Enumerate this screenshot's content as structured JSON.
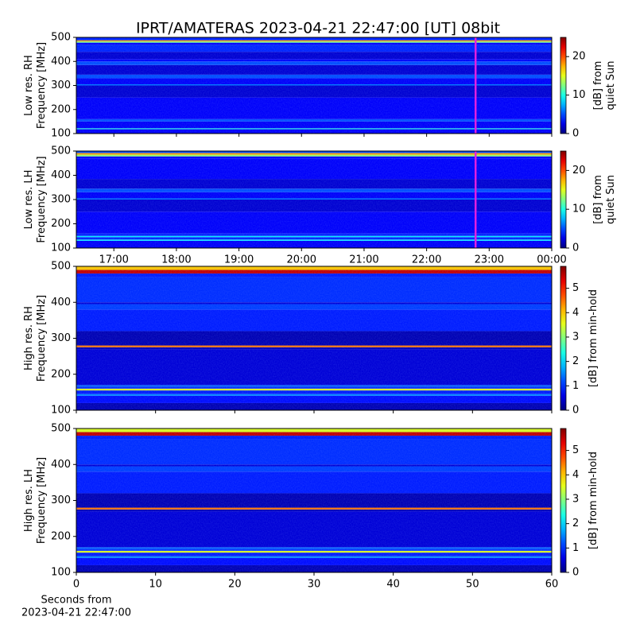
{
  "chart_data": [
    {
      "type": "heatmap",
      "title": "IPRT/AMATERAS 2023-04-21 22:47:00 [UT]   08bit",
      "ylabel": [
        "Low res. RH",
        "Frequency [MHz]"
      ],
      "xlim": [
        16.4,
        24.0
      ],
      "xticks": [
        17,
        18,
        19,
        20,
        21,
        22,
        23,
        24
      ],
      "show_xticklabels": false,
      "ylim": [
        100,
        500
      ],
      "yticks": [
        100,
        200,
        300,
        400,
        500
      ],
      "y_edges": [
        100,
        118,
        122,
        150,
        160,
        250,
        300,
        305,
        330,
        345,
        385,
        400,
        410,
        440,
        470,
        478,
        483,
        488,
        500
      ],
      "values": [
        3,
        10,
        3,
        5,
        3,
        2,
        6,
        3,
        5,
        2,
        5,
        3,
        2,
        4,
        3,
        12,
        18,
        4
      ],
      "marker": {
        "x": 22.783,
        "color": "#e020e0"
      },
      "colormap": "jet",
      "clim": [
        0,
        25
      ],
      "cticks": [
        0,
        10,
        20
      ],
      "clabel": [
        "[dB] from",
        "quiet Sun"
      ]
    },
    {
      "type": "heatmap",
      "ylabel": [
        "Low res. LH",
        "Frequency [MHz]"
      ],
      "xlim": [
        16.4,
        24.0
      ],
      "xticks": [
        {
          "value": 17,
          "label": "17:00"
        },
        {
          "value": 18,
          "label": "18:00"
        },
        {
          "value": 19,
          "label": "19:00"
        },
        {
          "value": 20,
          "label": "20:00"
        },
        {
          "value": 21,
          "label": "21:00"
        },
        {
          "value": 22,
          "label": "22:00"
        },
        {
          "value": 23,
          "label": "23:00"
        },
        {
          "value": 24,
          "label": "00:00"
        }
      ],
      "show_xticklabels": true,
      "xticks_top": true,
      "ylim": [
        100,
        500
      ],
      "yticks": [
        100,
        200,
        300,
        400,
        500
      ],
      "y_edges": [
        100,
        130,
        135,
        145,
        150,
        160,
        250,
        300,
        305,
        330,
        345,
        385,
        470,
        478,
        485,
        492,
        500
      ],
      "values": [
        3,
        9,
        4,
        9,
        4,
        3,
        2,
        6,
        3,
        5,
        2,
        3,
        3,
        13,
        18,
        5
      ],
      "marker": {
        "x": 22.783,
        "color": "#e020e0"
      },
      "colormap": "jet",
      "clim": [
        0,
        25
      ],
      "cticks": [
        0,
        10,
        20
      ],
      "clabel": [
        "[dB] from",
        "quiet Sun"
      ]
    },
    {
      "type": "heatmap",
      "ylabel": [
        "High res. RH",
        "Frequency [MHz]"
      ],
      "xlim": [
        0,
        60
      ],
      "xticks": [
        0,
        10,
        20,
        30,
        40,
        50,
        60
      ],
      "show_xticklabels": false,
      "ylim": [
        100,
        500
      ],
      "yticks": [
        100,
        200,
        300,
        400,
        500
      ],
      "y_edges": [
        100,
        120,
        140,
        145,
        155,
        160,
        165,
        170,
        270,
        275,
        280,
        320,
        380,
        395,
        400,
        470,
        480,
        490,
        500
      ],
      "values": [
        0.3,
        0.8,
        1.5,
        0.9,
        3.5,
        1.0,
        1.3,
        0.5,
        0.3,
        4.5,
        0.3,
        0.9,
        1.1,
        0.5,
        1.0,
        0.9,
        5.5,
        4.0
      ],
      "colormap": "jet",
      "clim": [
        0,
        5.9
      ],
      "cticks": [
        0,
        1,
        2,
        3,
        4,
        5
      ],
      "clabel": [
        "[dB] from min-hold"
      ]
    },
    {
      "type": "heatmap",
      "ylabel": [
        "High res. LH",
        "Frequency [MHz]"
      ],
      "xlim": [
        0,
        60
      ],
      "xticks": [
        0,
        10,
        20,
        30,
        40,
        50,
        60
      ],
      "show_xticklabels": true,
      "xlabel": [
        "Seconds from",
        "2023-04-21 22:47:00"
      ],
      "ylim": [
        100,
        500
      ],
      "yticks": [
        100,
        200,
        300,
        400,
        500
      ],
      "y_edges": [
        100,
        120,
        140,
        145,
        155,
        160,
        165,
        170,
        270,
        275,
        280,
        320,
        380,
        395,
        400,
        470,
        480,
        490,
        500
      ],
      "values": [
        0.3,
        0.8,
        1.5,
        0.9,
        3.5,
        1.0,
        1.3,
        0.5,
        0.3,
        4.5,
        0.3,
        0.9,
        1.1,
        0.5,
        1.0,
        0.9,
        5.5,
        3.5
      ],
      "colormap": "jet",
      "clim": [
        0,
        5.9
      ],
      "cticks": [
        0,
        1,
        2,
        3,
        4,
        5
      ],
      "clabel": [
        "[dB] from min-hold"
      ]
    }
  ]
}
